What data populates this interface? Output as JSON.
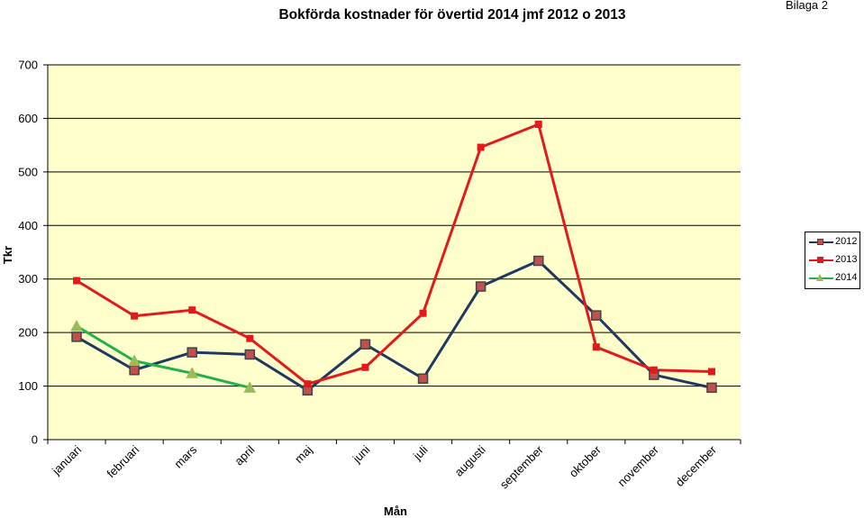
{
  "header": {
    "title": "Bokförda kostnader för övertid 2014 jmf 2012 o 2013",
    "bilaga": "Bilaga 2"
  },
  "colors": {
    "plot_bg": "#FFFFCC",
    "s2012_line": "#1F3864",
    "s2012_marker": "#C0504D",
    "s2013": "#E31A1C",
    "s2014_line": "#22B14C",
    "s2014_marker": "#9BBB59"
  },
  "chart_data": {
    "type": "line",
    "title": "Bokförda kostnader för övertid 2014 jmf 2012 o 2013",
    "xlabel": "Mån",
    "ylabel": "Tkr",
    "ylim": [
      0,
      700
    ],
    "yticks": [
      0,
      100,
      200,
      300,
      400,
      500,
      600,
      700
    ],
    "grid": true,
    "legend_position": "right",
    "categories": [
      "januari",
      "februari",
      "mars",
      "april",
      "maj",
      "juni",
      "juli",
      "augusti",
      "september",
      "oktober",
      "november",
      "december"
    ],
    "series": [
      {
        "name": "2012",
        "values": [
          192,
          130,
          163,
          159,
          92,
          178,
          114,
          286,
          334,
          232,
          121,
          97
        ]
      },
      {
        "name": "2013",
        "values": [
          297,
          231,
          242,
          189,
          104,
          135,
          236,
          546,
          589,
          173,
          130,
          127
        ]
      },
      {
        "name": "2014",
        "values": [
          212,
          147,
          124,
          97,
          null,
          null,
          null,
          null,
          null,
          null,
          null,
          null
        ]
      }
    ]
  }
}
